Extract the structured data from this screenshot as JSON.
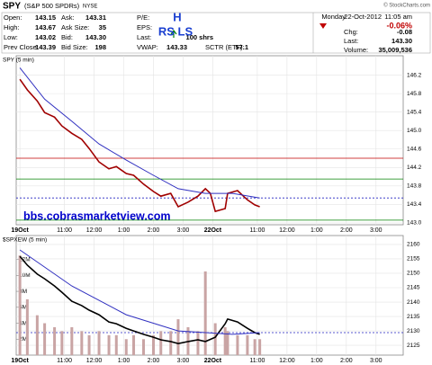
{
  "header": {
    "symbol": "SPY",
    "name": "(S&P 500 SPDRs)",
    "exchange": "NYSE",
    "source": "© StockCharts.com",
    "fields": [
      {
        "label": "Open:",
        "value": "143.15"
      },
      {
        "label": "High:",
        "value": "143.67"
      },
      {
        "label": "Low:",
        "value": "143.02"
      },
      {
        "label": "Prev Close:",
        "value": "143.39"
      },
      {
        "label": "Ask:",
        "value": "143.31"
      },
      {
        "label": "Ask Size:",
        "value": "35"
      },
      {
        "label": "Bid:",
        "value": "143.30"
      },
      {
        "label": "Bid Size:",
        "value": "198"
      },
      {
        "label": "P/E:"
      },
      {
        "label": "EPS:"
      },
      {
        "label": "Last:",
        "value": "100 shrs"
      },
      {
        "label": "VWAP:",
        "value": "143.33"
      },
      {
        "label": "SCTR (ETF):",
        "value": "57.1"
      }
    ],
    "date": "Monday",
    "day": "22-Oct-2012",
    "time": "11:05 am",
    "change_pct": "-0.06%",
    "right_fields": [
      {
        "label": "Chg:",
        "value": "-0.08"
      },
      {
        "label": "Last:",
        "value": "143.30"
      },
      {
        "label": "Volume:",
        "value": "35,009,536"
      }
    ]
  },
  "chart_data": [
    {
      "type": "line",
      "title": "SPY (5 min)",
      "annotations": [
        {
          "text": "H"
        },
        {
          "text": "RS LS"
        },
        {
          "text": "bbs.cobrasmarketview.com"
        }
      ],
      "xlim": [
        -1.5,
        155
      ],
      "xticks": [
        {
          "value": 0,
          "label": "19Oct"
        },
        {
          "value": 18,
          "label": "11:00"
        },
        {
          "value": 30,
          "label": "12:00"
        },
        {
          "value": 42,
          "label": "1:00"
        },
        {
          "value": 54,
          "label": "2:00"
        },
        {
          "value": 66,
          "label": "3:00"
        },
        {
          "value": 78,
          "label": "22Oct"
        },
        {
          "value": 96,
          "label": "11:00"
        },
        {
          "value": 108,
          "label": "12:00"
        },
        {
          "value": 120,
          "label": "1:00"
        },
        {
          "value": 132,
          "label": "2:00"
        },
        {
          "value": 144,
          "label": "3:00"
        }
      ],
      "ylim": [
        142.96,
        146.62
      ],
      "yticks": [
        {
          "value": 143.0,
          "label": "143.0"
        },
        {
          "value": 143.4,
          "label": "143.4"
        },
        {
          "value": 143.8,
          "label": "143.8"
        },
        {
          "value": 144.2,
          "label": "144.2"
        },
        {
          "value": 144.6,
          "label": "144.6"
        },
        {
          "value": 145.0,
          "label": "145.0"
        },
        {
          "value": 145.4,
          "label": "145.4"
        },
        {
          "value": 145.8,
          "label": "145.8"
        },
        {
          "value": 146.2,
          "label": "146.2"
        }
      ],
      "grid": true,
      "hlines": [
        {
          "value": 144.4,
          "color": "#c00000"
        },
        {
          "value": 143.95,
          "color": "#008000"
        },
        {
          "value": 143.54,
          "color": "#2020c0",
          "dash": true
        },
        {
          "value": 143.06,
          "color": "#008000"
        }
      ],
      "series": [
        {
          "color": "#a00000",
          "x": [
            0,
            3,
            7,
            10,
            14,
            17,
            21,
            25,
            28,
            32,
            36,
            39,
            43,
            46,
            50,
            54,
            57,
            61,
            64,
            68,
            72,
            75,
            77,
            79,
            83,
            84,
            88,
            92,
            95,
            97
          ],
          "values": [
            146.11,
            145.88,
            145.64,
            145.39,
            145.29,
            145.1,
            144.94,
            144.81,
            144.61,
            144.32,
            144.17,
            144.22,
            144.07,
            144.03,
            143.84,
            143.68,
            143.58,
            143.64,
            143.35,
            143.45,
            143.58,
            143.74,
            143.64,
            143.25,
            143.31,
            143.64,
            143.7,
            143.5,
            143.39,
            143.35
          ]
        },
        {
          "color": "#3030c0",
          "x": [
            0,
            10,
            21,
            32,
            43,
            54,
            64,
            75,
            86,
            97
          ],
          "values": [
            146.36,
            145.68,
            145.2,
            144.71,
            144.36,
            144.03,
            143.74,
            143.64,
            143.64,
            143.54
          ]
        }
      ]
    },
    {
      "type": "combo",
      "title": "$SPXEW (5 min)",
      "xlim": [
        -1.5,
        155
      ],
      "xticks": [
        {
          "value": 0,
          "label": "19Oct"
        },
        {
          "value": 18,
          "label": "11:00"
        },
        {
          "value": 30,
          "label": "12:00"
        },
        {
          "value": 42,
          "label": "1:00"
        },
        {
          "value": 54,
          "label": "2:00"
        },
        {
          "value": 66,
          "label": "3:00"
        },
        {
          "value": 78,
          "label": "22Oct"
        },
        {
          "value": 96,
          "label": "11:00"
        },
        {
          "value": 108,
          "label": "12:00"
        },
        {
          "value": 120,
          "label": "1:00"
        },
        {
          "value": 132,
          "label": "2:00"
        },
        {
          "value": 144,
          "label": "3:00"
        }
      ],
      "ylim": [
        0,
        15000000
      ],
      "yticks": [
        {
          "value": 2000000,
          "label": "2M"
        },
        {
          "value": 4000000,
          "label": "4M"
        },
        {
          "value": 6000000,
          "label": "6M"
        },
        {
          "value": 8000000,
          "label": "8M"
        },
        {
          "value": 10000000,
          "label": "10M"
        },
        {
          "value": 12000000,
          "label": "12M"
        }
      ],
      "y2lim": [
        2121.6,
        2163.1
      ],
      "y2ticks": [
        2125,
        2130,
        2135,
        2140,
        2145,
        2150,
        2155,
        2160
      ],
      "grid": true,
      "hlines": [
        {
          "value": 2129.4,
          "color": "#2020c0",
          "dash": true,
          "axis": "y2"
        }
      ],
      "series": [
        {
          "type": "bar",
          "color": "#c9a4a4",
          "x": [
            0,
            3,
            7,
            10,
            14,
            17,
            21,
            25,
            28,
            32,
            36,
            39,
            43,
            46,
            50,
            54,
            57,
            61,
            64,
            68,
            72,
            75,
            79,
            83,
            84,
            88,
            92,
            95,
            97
          ],
          "values": [
            12500000,
            7000000,
            5000000,
            4000000,
            3500000,
            3000000,
            3500000,
            3000000,
            2500000,
            3000000,
            2500000,
            2500000,
            2000000,
            2500000,
            2000000,
            2500000,
            3000000,
            3000000,
            4500000,
            3500000,
            3000000,
            10500000,
            4000000,
            3500000,
            3000000,
            2500000,
            2500000,
            2000000,
            2000000
          ]
        },
        {
          "type": "line",
          "axis": "y2",
          "color": "#000000",
          "x": [
            0,
            3,
            7,
            10,
            14,
            17,
            21,
            25,
            28,
            32,
            36,
            39,
            43,
            46,
            50,
            54,
            57,
            61,
            64,
            68,
            72,
            75,
            79,
            83,
            84,
            88,
            92,
            95,
            97
          ],
          "values": [
            2155.9,
            2152.8,
            2149.7,
            2148.1,
            2145.6,
            2143.4,
            2140.3,
            2138.8,
            2137.2,
            2135.6,
            2133.1,
            2132.5,
            2130.9,
            2130.0,
            2128.8,
            2127.8,
            2126.9,
            2126.3,
            2125.6,
            2126.3,
            2126.9,
            2126.3,
            2127.8,
            2132.5,
            2134.1,
            2133.1,
            2130.9,
            2129.4,
            2128.8
          ]
        },
        {
          "type": "line",
          "axis": "y2",
          "color": "#3030c0",
          "x": [
            0,
            21,
            43,
            64,
            86,
            97
          ],
          "values": [
            2158.1,
            2145.6,
            2135.6,
            2130.0,
            2128.8,
            2129.4
          ]
        }
      ]
    }
  ]
}
